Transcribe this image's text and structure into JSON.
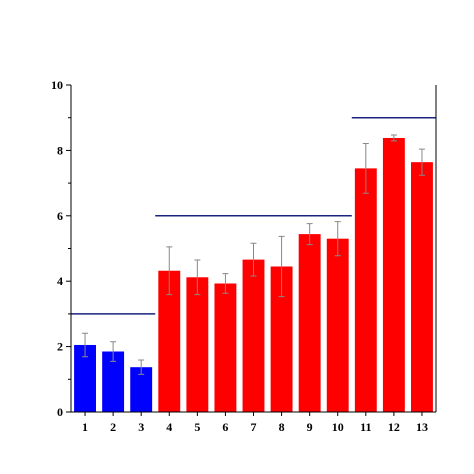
{
  "chart_data": {
    "type": "bar",
    "title": "",
    "xlabel": "",
    "ylabel": "",
    "ylim": [
      0,
      10
    ],
    "y_ticks": [
      0,
      2,
      4,
      6,
      8,
      10
    ],
    "grid": false,
    "categories": [
      "1",
      "2",
      "3",
      "4",
      "5",
      "6",
      "7",
      "8",
      "9",
      "10",
      "11",
      "12",
      "13"
    ],
    "values": [
      2.05,
      1.85,
      1.37,
      4.32,
      4.12,
      3.93,
      4.66,
      4.45,
      5.44,
      5.3,
      7.45,
      8.38,
      7.64
    ],
    "errors": [
      0.36,
      0.3,
      0.22,
      0.73,
      0.53,
      0.3,
      0.5,
      0.92,
      0.32,
      0.52,
      0.76,
      0.09,
      0.4
    ],
    "bar_colors": [
      "#0000ff",
      "#0000ff",
      "#0000ff",
      "#ff0000",
      "#ff0000",
      "#ff0000",
      "#ff0000",
      "#ff0000",
      "#ff0000",
      "#ff0000",
      "#ff0000",
      "#ff0000",
      "#ff0000"
    ],
    "reference_lines": [
      {
        "y": 3.0,
        "from_category": "1",
        "to_category": "3",
        "color": "#1a237e"
      },
      {
        "y": 6.0,
        "from_category": "4",
        "to_category": "10",
        "color": "#1a237e"
      },
      {
        "y": 9.0,
        "from_category": "11",
        "to_category": "13",
        "color": "#1a237e"
      }
    ]
  }
}
